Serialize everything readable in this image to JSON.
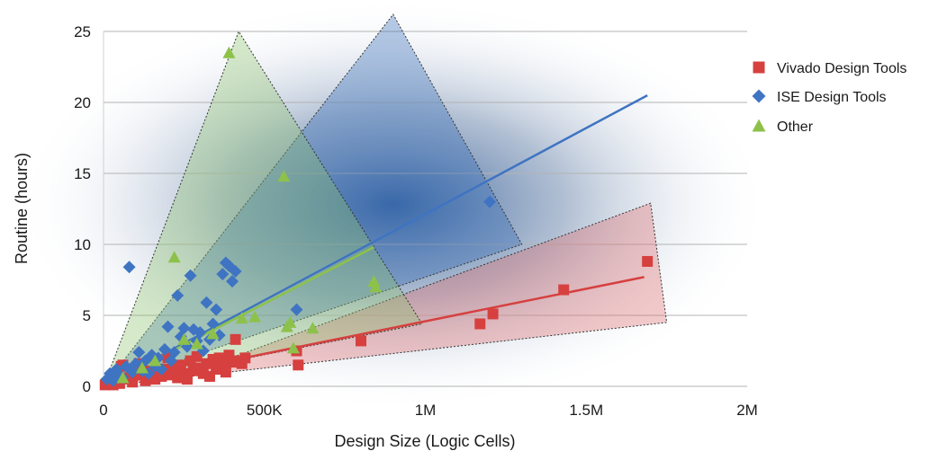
{
  "chart_data": {
    "type": "scatter",
    "title": "",
    "xlabel": "Design Size (Logic Cells)",
    "ylabel": "Routine (hours)",
    "xlim": [
      0,
      2000000
    ],
    "ylim": [
      0,
      25
    ],
    "x_ticks": [
      {
        "value": 0,
        "label": "0"
      },
      {
        "value": 500000,
        "label": "500K"
      },
      {
        "value": 1000000,
        "label": "1M"
      },
      {
        "value": 1500000,
        "label": "1.5M"
      },
      {
        "value": 2000000,
        "label": "2M"
      }
    ],
    "y_ticks": [
      {
        "value": 0,
        "label": "0"
      },
      {
        "value": 5,
        "label": "5"
      },
      {
        "value": 10,
        "label": "10"
      },
      {
        "value": 15,
        "label": "15"
      },
      {
        "value": 20,
        "label": "20"
      },
      {
        "value": 25,
        "label": "25"
      }
    ],
    "grid": true,
    "legend_position": "right",
    "series": [
      {
        "name": "Vivado Design Tools",
        "marker": "square",
        "color": "#d6403f",
        "trend": [
          [
            0,
            0
          ],
          [
            1680000,
            7.7
          ]
        ],
        "region": [
          [
            0,
            0
          ],
          [
            420000,
            2.2
          ],
          [
            1700000,
            12.9
          ],
          [
            1750000,
            4.5
          ],
          [
            0,
            0
          ]
        ],
        "region_color": "#e06a6a",
        "points": [
          [
            5000,
            0.1
          ],
          [
            10000,
            0.2
          ],
          [
            20000,
            0.3
          ],
          [
            30000,
            0.1
          ],
          [
            40000,
            0.4
          ],
          [
            50000,
            0.2
          ],
          [
            55000,
            1.4
          ],
          [
            60000,
            1.5
          ],
          [
            70000,
            0.6
          ],
          [
            80000,
            0.5
          ],
          [
            90000,
            0.3
          ],
          [
            100000,
            0.8
          ],
          [
            110000,
            1.6
          ],
          [
            120000,
            0.9
          ],
          [
            130000,
            0.4
          ],
          [
            140000,
            1.1
          ],
          [
            150000,
            0.6
          ],
          [
            160000,
            0.5
          ],
          [
            170000,
            1.0
          ],
          [
            180000,
            0.7
          ],
          [
            190000,
            1.2
          ],
          [
            200000,
            2.0
          ],
          [
            210000,
            0.8
          ],
          [
            220000,
            1.4
          ],
          [
            230000,
            0.6
          ],
          [
            240000,
            1.5
          ],
          [
            250000,
            0.9
          ],
          [
            260000,
            0.5
          ],
          [
            270000,
            1.8
          ],
          [
            280000,
            1.1
          ],
          [
            290000,
            2.1
          ],
          [
            300000,
            1.3
          ],
          [
            310000,
            0.9
          ],
          [
            320000,
            1.6
          ],
          [
            330000,
            0.7
          ],
          [
            340000,
            1.9
          ],
          [
            350000,
            1.2
          ],
          [
            360000,
            2.0
          ],
          [
            370000,
            1.5
          ],
          [
            380000,
            1.0
          ],
          [
            390000,
            2.2
          ],
          [
            400000,
            1.7
          ],
          [
            410000,
            3.3
          ],
          [
            420000,
            1.8
          ],
          [
            430000,
            1.6
          ],
          [
            440000,
            2.0
          ],
          [
            600000,
            2.5
          ],
          [
            605000,
            1.5
          ],
          [
            800000,
            3.2
          ],
          [
            1170000,
            4.4
          ],
          [
            1210000,
            5.1
          ],
          [
            1430000,
            6.8
          ],
          [
            1690000,
            8.8
          ]
        ]
      },
      {
        "name": "ISE Design Tools",
        "marker": "diamond",
        "color": "#3f74c2",
        "trend": [
          [
            0,
            0
          ],
          [
            1690000,
            20.5
          ]
        ],
        "region": [
          [
            0,
            0
          ],
          [
            900000,
            26.2
          ],
          [
            1300000,
            10
          ],
          [
            0,
            0
          ]
        ],
        "region_color": "#2f66b5",
        "points": [
          [
            10000,
            0.5
          ],
          [
            20000,
            0.9
          ],
          [
            30000,
            0.4
          ],
          [
            40000,
            1.2
          ],
          [
            50000,
            0.8
          ],
          [
            60000,
            0.6
          ],
          [
            70000,
            1.4
          ],
          [
            80000,
            8.4
          ],
          [
            90000,
            1.0
          ],
          [
            100000,
            1.6
          ],
          [
            110000,
            2.4
          ],
          [
            120000,
            1.1
          ],
          [
            130000,
            1.8
          ],
          [
            140000,
            0.9
          ],
          [
            150000,
            2.2
          ],
          [
            160000,
            1.4
          ],
          [
            170000,
            2.0
          ],
          [
            180000,
            1.2
          ],
          [
            190000,
            2.6
          ],
          [
            200000,
            4.2
          ],
          [
            210000,
            1.8
          ],
          [
            220000,
            2.4
          ],
          [
            230000,
            6.4
          ],
          [
            240000,
            3.5
          ],
          [
            250000,
            4.1
          ],
          [
            260000,
            2.8
          ],
          [
            270000,
            7.8
          ],
          [
            280000,
            4.0
          ],
          [
            290000,
            3.2
          ],
          [
            300000,
            3.8
          ],
          [
            310000,
            2.5
          ],
          [
            320000,
            5.9
          ],
          [
            330000,
            3.3
          ],
          [
            340000,
            4.4
          ],
          [
            350000,
            5.4
          ],
          [
            360000,
            3.6
          ],
          [
            370000,
            7.9
          ],
          [
            380000,
            8.7
          ],
          [
            390000,
            8.5
          ],
          [
            400000,
            7.4
          ],
          [
            410000,
            8.1
          ],
          [
            600000,
            5.4
          ],
          [
            1200000,
            13.0
          ]
        ]
      },
      {
        "name": "Other",
        "marker": "triangle",
        "color": "#8dc14b",
        "trend": [
          [
            0,
            0
          ],
          [
            840000,
            9.8
          ]
        ],
        "region": [
          [
            0,
            0
          ],
          [
            420000,
            25
          ],
          [
            990000,
            4.4
          ],
          [
            0,
            0
          ]
        ],
        "region_color": "#8dc46a",
        "points": [
          [
            60000,
            0.6
          ],
          [
            120000,
            1.3
          ],
          [
            160000,
            1.8
          ],
          [
            220000,
            9.1
          ],
          [
            250000,
            3.3
          ],
          [
            290000,
            3.0
          ],
          [
            340000,
            3.7
          ],
          [
            390000,
            23.5
          ],
          [
            430000,
            4.8
          ],
          [
            470000,
            4.9
          ],
          [
            560000,
            14.8
          ],
          [
            570000,
            4.2
          ],
          [
            580000,
            4.5
          ],
          [
            590000,
            2.7
          ],
          [
            650000,
            4.1
          ],
          [
            840000,
            7.4
          ],
          [
            845000,
            7.0
          ]
        ]
      }
    ]
  }
}
